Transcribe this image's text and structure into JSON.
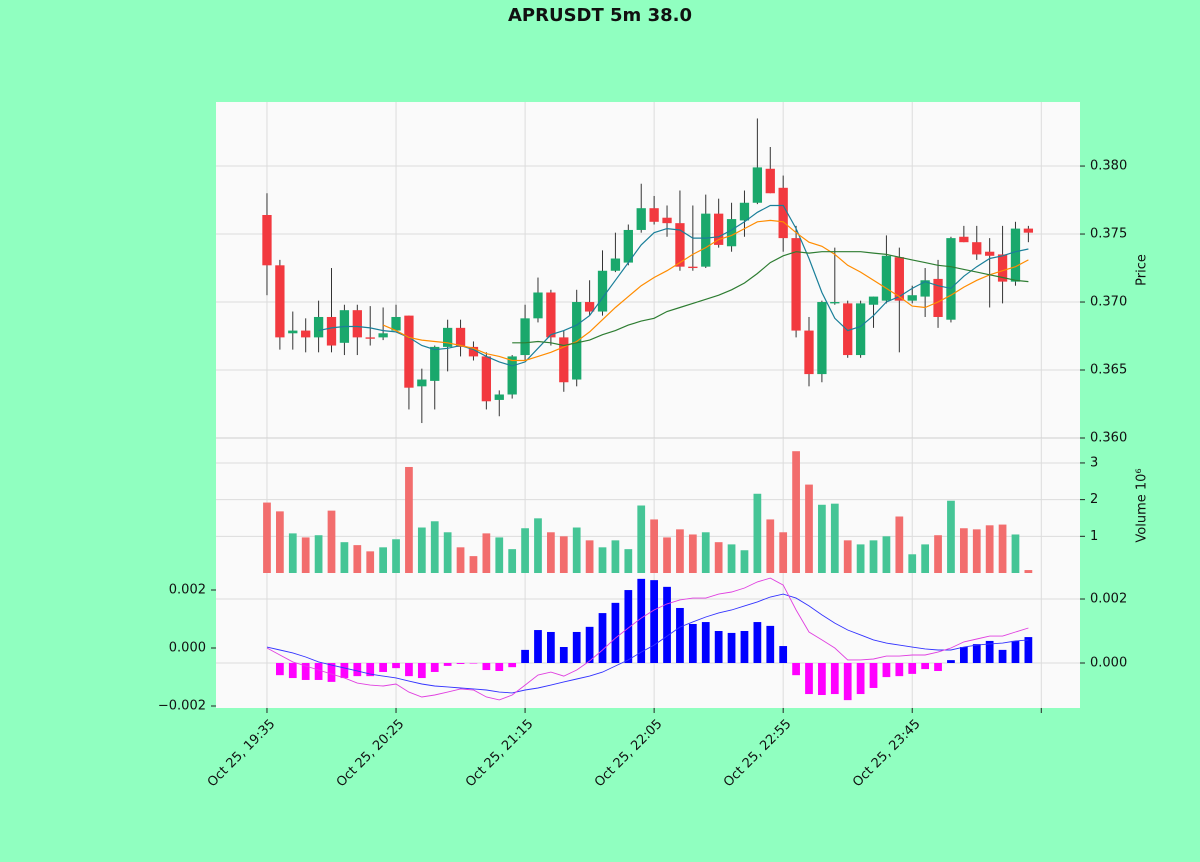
{
  "chart_data": [
    {
      "type": "candlestick",
      "title": "APRUSDT 5m 38.0",
      "ylabel": "Price",
      "categories": [
        "Oct 25, 19:35",
        null,
        null,
        null,
        null,
        null,
        null,
        null,
        null,
        null,
        "Oct 25, 20:25",
        null,
        null,
        null,
        null,
        null,
        null,
        null,
        null,
        null,
        "Oct 25, 21:15",
        null,
        null,
        null,
        null,
        null,
        null,
        null,
        null,
        null,
        "Oct 25, 22:05",
        null,
        null,
        null,
        null,
        null,
        null,
        null,
        null,
        null,
        "Oct 25, 22:55",
        null,
        null,
        null,
        null,
        null,
        null,
        null,
        null,
        null,
        "Oct 25, 23:45",
        null,
        null,
        null,
        null,
        null,
        null,
        null,
        null,
        null
      ],
      "xlim": [
        -3.95,
        63
      ],
      "xticks": [
        0,
        10,
        20,
        30,
        40,
        50,
        60
      ],
      "open": [
        0.3764,
        0.3727,
        0.3677,
        0.3679,
        0.3674,
        0.3689,
        0.367,
        0.3694,
        0.3674,
        0.3674,
        0.3679,
        0.369,
        0.3638,
        0.3642,
        0.3667,
        0.3681,
        0.3667,
        0.366,
        0.3628,
        0.3632,
        0.3661,
        0.3688,
        0.3707,
        0.3674,
        0.3643,
        0.37,
        0.3693,
        0.3723,
        0.3729,
        0.3753,
        0.3769,
        0.3762,
        0.3758,
        0.3726,
        0.3726,
        0.3765,
        0.3741,
        0.376,
        0.3773,
        0.3798,
        0.3784,
        0.3747,
        0.3679,
        0.3647,
        0.3699,
        0.3699,
        0.3661,
        0.3698,
        0.3701,
        0.3733,
        0.3701,
        0.3704,
        0.3717,
        0.3687,
        0.3748,
        0.3744,
        0.3737,
        0.3735,
        0.3715,
        0.3754
      ],
      "high": [
        0.378,
        0.3731,
        0.3693,
        0.3688,
        0.3701,
        0.3725,
        0.3698,
        0.3698,
        0.3697,
        0.3696,
        0.3698,
        0.369,
        0.3651,
        0.3668,
        0.3687,
        0.3687,
        0.3671,
        0.3663,
        0.3635,
        0.3661,
        0.3698,
        0.3718,
        0.3709,
        0.3679,
        0.3709,
        0.3716,
        0.3738,
        0.3751,
        0.3757,
        0.3787,
        0.3778,
        0.3771,
        0.3782,
        0.3771,
        0.3779,
        0.3776,
        0.3773,
        0.3782,
        0.3835,
        0.3814,
        0.3793,
        0.3756,
        0.3689,
        0.3701,
        0.374,
        0.3701,
        0.3701,
        0.3704,
        0.3749,
        0.374,
        0.3712,
        0.3725,
        0.3731,
        0.3748,
        0.3756,
        0.3756,
        0.3747,
        0.3756,
        0.3759,
        0.3756
      ],
      "low": [
        0.3705,
        0.3665,
        0.3665,
        0.3663,
        0.3663,
        0.3663,
        0.3661,
        0.3661,
        0.3668,
        0.3672,
        0.3679,
        0.3621,
        0.3611,
        0.3621,
        0.3649,
        0.366,
        0.3657,
        0.3621,
        0.3616,
        0.3629,
        0.3657,
        0.3685,
        0.3668,
        0.3634,
        0.3638,
        0.369,
        0.369,
        0.3722,
        0.3727,
        0.3751,
        0.3757,
        0.3748,
        0.3723,
        0.3723,
        0.3725,
        0.374,
        0.3737,
        0.3748,
        0.3772,
        0.378,
        0.3737,
        0.3674,
        0.3638,
        0.3641,
        0.3698,
        0.3659,
        0.3659,
        0.3681,
        0.3699,
        0.3663,
        0.3699,
        0.3689,
        0.3681,
        0.3685,
        0.3744,
        0.3731,
        0.3696,
        0.3699,
        0.3712,
        0.3744
      ],
      "close": [
        0.3727,
        0.3674,
        0.3679,
        0.3674,
        0.3689,
        0.3668,
        0.3694,
        0.3674,
        0.3673,
        0.3677,
        0.3689,
        0.3637,
        0.3643,
        0.3667,
        0.3681,
        0.3667,
        0.366,
        0.3627,
        0.3632,
        0.366,
        0.3688,
        0.3707,
        0.3674,
        0.3641,
        0.37,
        0.3693,
        0.3723,
        0.3732,
        0.3753,
        0.3769,
        0.3759,
        0.3758,
        0.3726,
        0.3725,
        0.3765,
        0.3742,
        0.3761,
        0.3773,
        0.3799,
        0.378,
        0.3747,
        0.3679,
        0.3647,
        0.37,
        0.37,
        0.3661,
        0.3699,
        0.3704,
        0.3734,
        0.3701,
        0.3705,
        0.3716,
        0.3689,
        0.3747,
        0.3744,
        0.3735,
        0.3734,
        0.3715,
        0.3754,
        0.3751
      ],
      "up_color": "#1aa86c",
      "down_color": "#f2393f",
      "wick_color": "#333333",
      "series": [
        {
          "color": "#1a7f99",
          "values": [
            null,
            null,
            null,
            null,
            0.3679,
            0.3681,
            0.3682,
            0.3682,
            0.3681,
            0.3679,
            0.3678,
            0.3674,
            0.3668,
            0.3665,
            0.3666,
            0.3668,
            0.3665,
            0.366,
            0.3656,
            0.3653,
            0.3656,
            0.3666,
            0.3676,
            0.3679,
            0.3683,
            0.369,
            0.3703,
            0.3716,
            0.3729,
            0.3742,
            0.3751,
            0.3754,
            0.3753,
            0.3747,
            0.3747,
            0.3748,
            0.3753,
            0.3759,
            0.3766,
            0.3771,
            0.3771,
            0.3754,
            0.3732,
            0.3707,
            0.3688,
            0.3679,
            0.3682,
            0.369,
            0.37,
            0.3704,
            0.371,
            0.3715,
            0.3712,
            0.371,
            0.3719,
            0.3726,
            0.3732,
            0.3734,
            0.3737,
            0.3739
          ]
        },
        {
          "color": "#ff8c00",
          "values": [
            null,
            null,
            null,
            null,
            null,
            null,
            null,
            null,
            null,
            0.3683,
            0.3679,
            0.3674,
            0.3672,
            0.3671,
            0.367,
            0.3668,
            0.3666,
            0.3662,
            0.366,
            0.3657,
            0.3657,
            0.366,
            0.3663,
            0.3667,
            0.3671,
            0.3678,
            0.3687,
            0.3696,
            0.3704,
            0.3712,
            0.3718,
            0.3723,
            0.3729,
            0.3735,
            0.374,
            0.3746,
            0.3749,
            0.3754,
            0.3759,
            0.376,
            0.3759,
            0.3751,
            0.3744,
            0.3741,
            0.3735,
            0.3727,
            0.3722,
            0.3716,
            0.371,
            0.3704,
            0.3697,
            0.3696,
            0.37,
            0.3705,
            0.3711,
            0.3716,
            0.372,
            0.3723,
            0.3726,
            0.3731
          ]
        },
        {
          "color": "#2e7d32",
          "values": [
            null,
            null,
            null,
            null,
            null,
            null,
            null,
            null,
            null,
            null,
            null,
            null,
            null,
            null,
            null,
            null,
            null,
            null,
            null,
            0.367,
            0.367,
            0.3671,
            0.367,
            0.3668,
            0.367,
            0.3672,
            0.3676,
            0.3679,
            0.3683,
            0.3686,
            0.3688,
            0.3693,
            0.3696,
            0.3699,
            0.3702,
            0.3705,
            0.3709,
            0.3714,
            0.3721,
            0.3729,
            0.3734,
            0.3737,
            0.3736,
            0.3737,
            0.3737,
            0.3737,
            0.3737,
            0.3736,
            0.3735,
            0.3733,
            0.3731,
            0.3729,
            0.3727,
            0.3726,
            0.3724,
            0.3722,
            0.372,
            0.3718,
            0.3716,
            0.3715
          ]
        }
      ],
      "ylim": [
        0.36,
        0.38471
      ],
      "yticks": [
        {
          "value": 0.36,
          "label": "0.360"
        },
        {
          "value": 0.365,
          "label": "0.365"
        },
        {
          "value": 0.37,
          "label": "0.370"
        },
        {
          "value": 0.375,
          "label": "0.375"
        },
        {
          "value": 0.38,
          "label": "0.380"
        }
      ],
      "grid": true
    },
    {
      "type": "bar",
      "ylabel": "Volume  10⁶",
      "values": [
        1.92,
        1.68,
        1.08,
        0.97,
        1.03,
        1.7,
        0.84,
        0.76,
        0.59,
        0.7,
        0.92,
        2.89,
        1.24,
        1.41,
        1.11,
        0.7,
        0.46,
        1.08,
        0.97,
        0.65,
        1.22,
        1.49,
        1.11,
        1.0,
        1.24,
        0.89,
        0.7,
        0.89,
        0.65,
        1.84,
        1.46,
        0.97,
        1.19,
        1.05,
        1.11,
        0.84,
        0.78,
        0.62,
        2.16,
        1.46,
        1.11,
        3.32,
        2.41,
        1.86,
        1.89,
        0.89,
        0.78,
        0.89,
        1.0,
        1.54,
        0.51,
        0.78,
        1.03,
        1.97,
        1.22,
        1.19,
        1.3,
        1.32,
        1.05,
        0.08
      ],
      "up_color": "#45c596",
      "down_color": "#f26d6d",
      "ylim": [
        0,
        3.68
      ],
      "yticks": [
        1,
        2,
        3
      ],
      "grid": true
    },
    {
      "type": "macd",
      "series": [
        {
          "style": "bar",
          "axis": "y2",
          "color": "#0000ff",
          "negative_color": "#ff00ff",
          "values": [
            null,
            -0.00038,
            -0.00047,
            -0.00053,
            -0.00053,
            -0.00059,
            -0.00047,
            -0.00041,
            -0.00041,
            -0.00028,
            -0.00016,
            -0.00041,
            -0.00047,
            -0.00028,
            -9e-05,
            -3e-05,
            -1e-05,
            -0.00022,
            -0.00025,
            -0.00013,
            0.00041,
            0.00103,
            0.00097,
            0.0005,
            0.00097,
            0.00113,
            0.00156,
            0.00188,
            0.00228,
            0.00263,
            0.00259,
            0.00238,
            0.00172,
            0.00122,
            0.00128,
            0.001,
            0.00094,
            0.001,
            0.00128,
            0.00116,
            0.00053,
            -0.00038,
            -0.00097,
            -0.001,
            -0.00097,
            -0.00116,
            -0.00097,
            -0.00078,
            -0.00044,
            -0.00041,
            -0.00034,
            -0.00019,
            -0.00025,
            9e-05,
            0.0005,
            0.00059,
            0.00069,
            0.00041,
            0.00069,
            0.00081
          ]
        },
        {
          "style": "line",
          "axis": "y",
          "color": "#3333ff",
          "values": [
            3e-05,
            -7e-05,
            -0.00017,
            -0.00031,
            -0.00048,
            -0.00059,
            -0.00069,
            -0.00079,
            -0.0009,
            -0.00097,
            -0.00103,
            -0.00114,
            -0.00124,
            -0.00131,
            -0.00134,
            -0.00138,
            -0.00141,
            -0.00145,
            -0.00152,
            -0.00155,
            -0.00145,
            -0.00138,
            -0.00128,
            -0.00117,
            -0.00107,
            -0.00097,
            -0.00083,
            -0.00062,
            -0.00041,
            -0.00014,
            0.0001,
            0.00041,
            0.00072,
            0.0009,
            0.00107,
            0.00121,
            0.00131,
            0.00145,
            0.00159,
            0.00176,
            0.00186,
            0.00172,
            0.00145,
            0.00114,
            0.00086,
            0.00062,
            0.00045,
            0.00028,
            0.00017,
            0.0001,
            3e-05,
            -3e-05,
            -7e-05,
            -7e-05,
            3e-05,
            0.0001,
            0.00014,
            0.00017,
            0.00024,
            0.00028
          ]
        },
        {
          "style": "line",
          "axis": "y",
          "color": "#e040e0",
          "values": [
            0,
            -0.00024,
            -0.00048,
            -0.00062,
            -0.00076,
            -0.0009,
            -0.00103,
            -0.00121,
            -0.00128,
            -0.00131,
            -0.00124,
            -0.00152,
            -0.00169,
            -0.00162,
            -0.00152,
            -0.00141,
            -0.00145,
            -0.00169,
            -0.00179,
            -0.00162,
            -0.00128,
            -0.00093,
            -0.00083,
            -0.00097,
            -0.00076,
            -0.00045,
            -7e-05,
            0.00034,
            0.00069,
            0.00103,
            0.00131,
            0.00152,
            0.00166,
            0.00172,
            0.00172,
            0.00186,
            0.00193,
            0.00207,
            0.00228,
            0.00241,
            0.00217,
            0.00131,
            0.00055,
            0.00028,
            0,
            -0.00041,
            -0.00041,
            -0.00038,
            -0.00028,
            -0.00028,
            -0.00024,
            -0.00024,
            -0.00014,
            0,
            0.00021,
            0.00031,
            0.00041,
            0.00041,
            0.00055,
            0.00069
          ]
        }
      ],
      "ylim": [
        -0.002069,
        0.002586
      ],
      "yticks": [
        {
          "value": -0.002,
          "label": "−0.002"
        },
        {
          "value": 0,
          "label": "0.000"
        },
        {
          "value": 0.002,
          "label": "0.002"
        }
      ],
      "y2lim": [
        -0.001406,
        0.002813
      ],
      "y2ticks": [
        {
          "value": 0,
          "label": "0.000"
        },
        {
          "value": 0.002,
          "label": "0.002"
        }
      ],
      "grid": true
    }
  ]
}
